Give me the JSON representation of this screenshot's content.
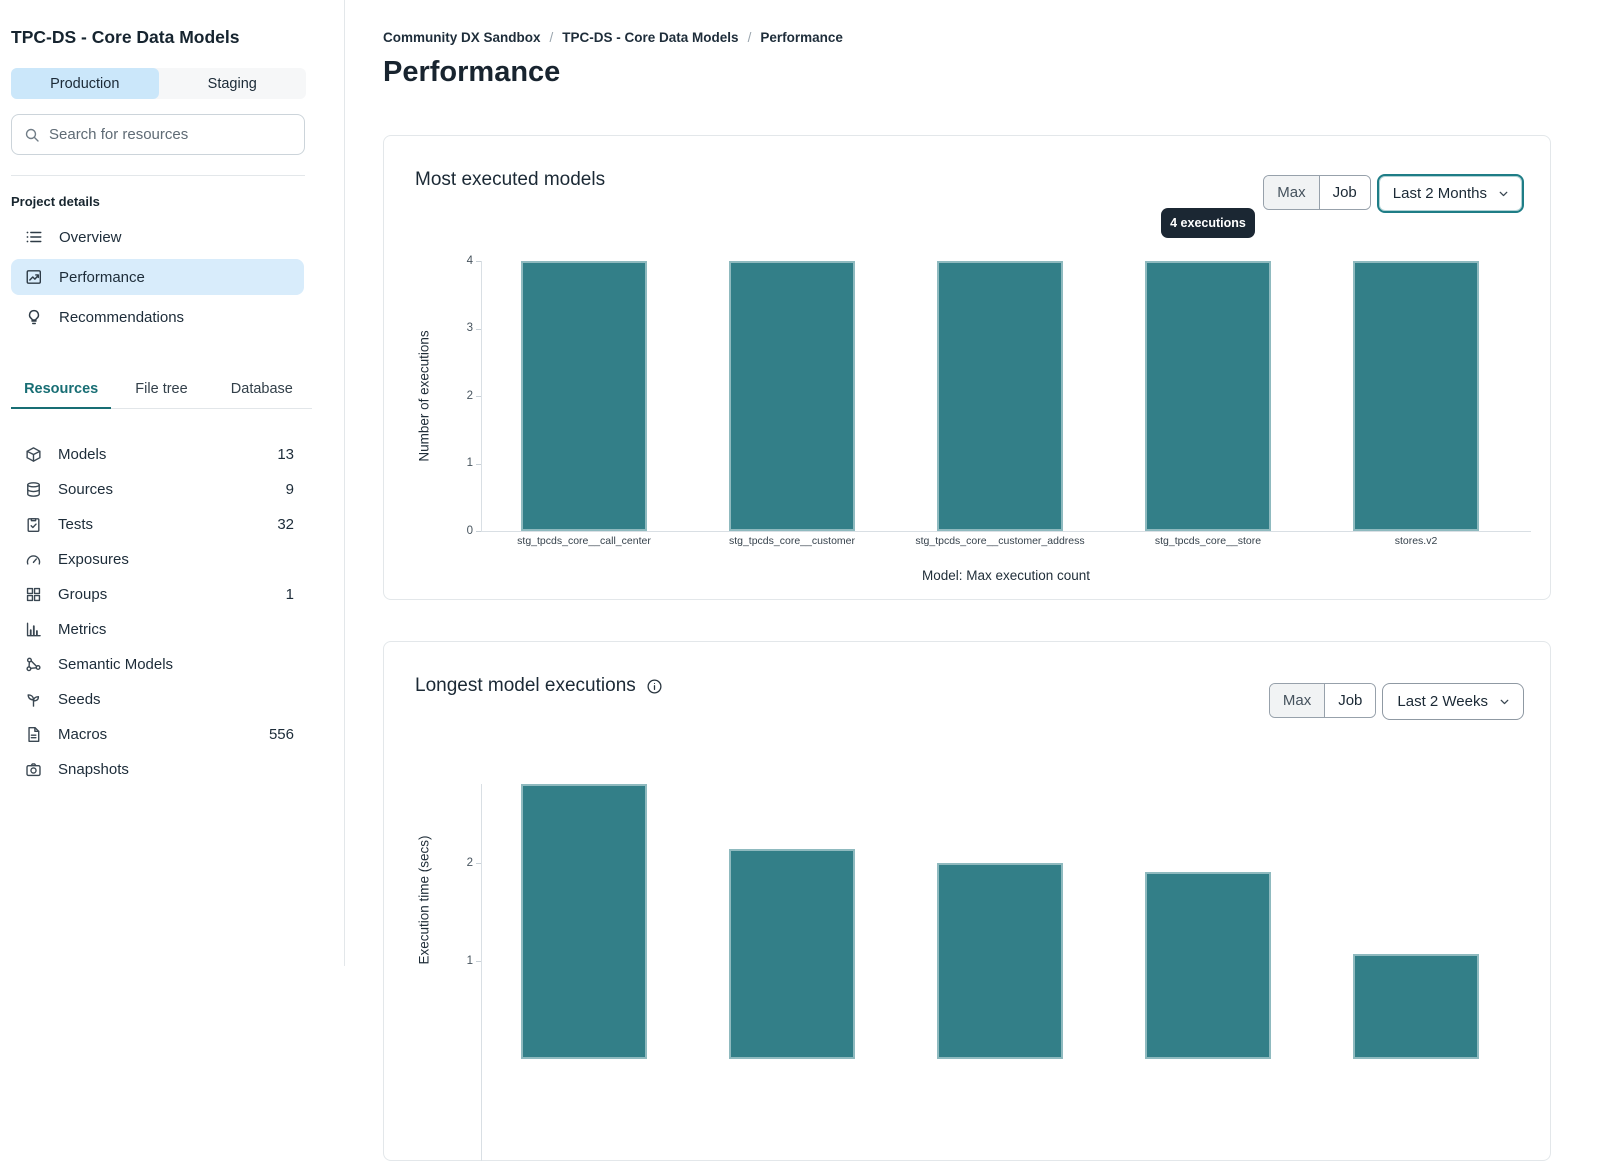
{
  "colors": {
    "accent_teal": "#186E74",
    "bar_teal": "#337F88",
    "active_item_bg": "#D8ECFB",
    "production_tab_bg": "#CBE7FA",
    "tooltip_bg": "#1B2733",
    "focus_border": "#1E7D86"
  },
  "sidebar": {
    "title": "TPC-DS - Core Data Models",
    "env_tabs": [
      {
        "label": "Production",
        "active": true
      },
      {
        "label": "Staging",
        "active": false
      }
    ],
    "search_placeholder": "Search for resources",
    "section_label": "Project details",
    "nav": [
      {
        "label": "Overview",
        "icon": "list"
      },
      {
        "label": "Performance",
        "icon": "chart",
        "active": true
      },
      {
        "label": "Recommendations",
        "icon": "bulb"
      }
    ],
    "resource_tabs": [
      {
        "label": "Resources",
        "active": true
      },
      {
        "label": "File tree",
        "active": false
      },
      {
        "label": "Database",
        "active": false
      }
    ],
    "resources": [
      {
        "label": "Models",
        "icon": "cube",
        "count": "13"
      },
      {
        "label": "Sources",
        "icon": "database",
        "count": "9"
      },
      {
        "label": "Tests",
        "icon": "clipboard",
        "count": "32"
      },
      {
        "label": "Exposures",
        "icon": "gauge",
        "count": ""
      },
      {
        "label": "Groups",
        "icon": "grid",
        "count": "1"
      },
      {
        "label": "Metrics",
        "icon": "bar-chart",
        "count": ""
      },
      {
        "label": "Semantic Models",
        "icon": "graph",
        "count": ""
      },
      {
        "label": "Seeds",
        "icon": "seedling",
        "count": ""
      },
      {
        "label": "Macros",
        "icon": "file",
        "count": "556"
      },
      {
        "label": "Snapshots",
        "icon": "camera",
        "count": ""
      }
    ]
  },
  "breadcrumb": {
    "items": [
      "Community DX Sandbox",
      "TPC-DS - Core Data Models",
      "Performance"
    ],
    "separator": "/"
  },
  "page_title": "Performance",
  "cards": [
    {
      "toggle": {
        "options": [
          "Max",
          "Job"
        ],
        "selected": "Job"
      },
      "range": "Last 2 Months",
      "range_focused": true,
      "tooltip": "4 executions"
    },
    {
      "toggle": {
        "options": [
          "Max",
          "Job"
        ],
        "selected": "Job"
      },
      "range": "Last 2 Weeks",
      "has_info_icon": true
    }
  ],
  "chart_data": [
    {
      "type": "bar",
      "title": "Most executed models",
      "categories": [
        "stg_tpcds_core__call_center",
        "stg_tpcds_core__customer",
        "stg_tpcds_core__customer_address",
        "stg_tpcds_core__store",
        "stores.v2"
      ],
      "values": [
        4,
        4,
        4,
        4,
        4
      ],
      "xlabel": "Model: Max execution count",
      "ylabel": "Number of executions",
      "ylim": [
        0,
        4
      ],
      "yticks": [
        0,
        1,
        2,
        3,
        4
      ],
      "bar_color": "#337F88",
      "grid": false,
      "legend": "none",
      "tooltip": {
        "text": "4 executions",
        "bar_index": 3
      }
    },
    {
      "type": "bar",
      "title": "Longest model executions",
      "values": [
        2.81,
        2.14,
        2.0,
        1.91,
        1.07
      ],
      "xlabel": "",
      "ylabel": "Execution time (secs)",
      "ylim": [
        0,
        2.81
      ],
      "yticks_visible": [
        1,
        2
      ],
      "bar_color": "#337F88",
      "grid": false,
      "legend": "none"
    }
  ]
}
